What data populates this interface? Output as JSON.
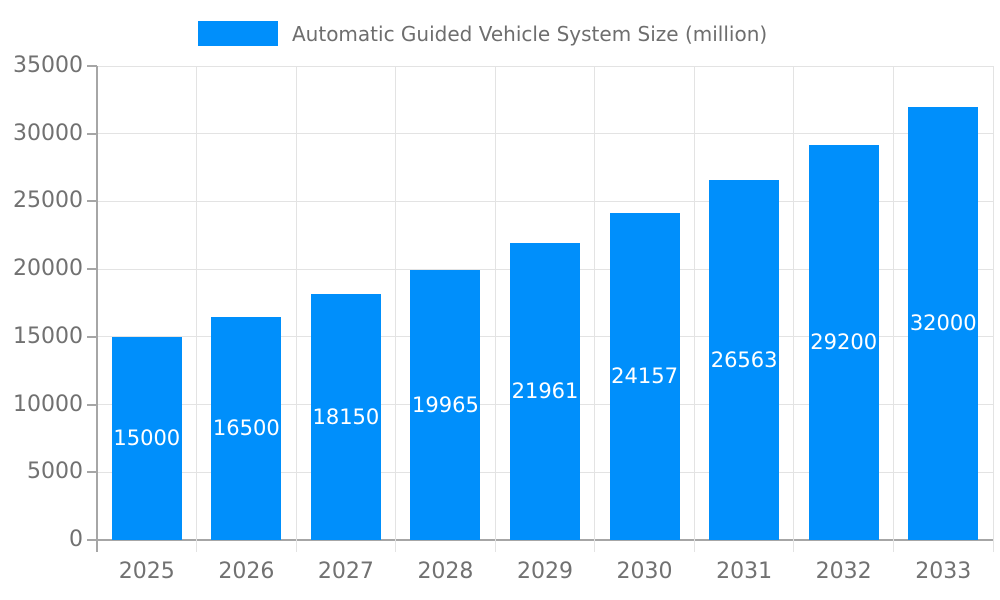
{
  "chart_data": {
    "type": "bar",
    "title": "",
    "categories": [
      "2025",
      "2026",
      "2027",
      "2028",
      "2029",
      "2030",
      "2031",
      "2032",
      "2033"
    ],
    "series": [
      {
        "name": "Automatic Guided Vehicle System Size (million)",
        "values": [
          15000,
          16500,
          18150,
          19965,
          21961,
          24157,
          26563,
          29200,
          32000
        ]
      }
    ],
    "value_labels": [
      "15000",
      "16500",
      "18150",
      "19965",
      "21961",
      "24157",
      "26563",
      "29200",
      "32000"
    ],
    "xlabel": "",
    "ylabel": "",
    "ylim": [
      0,
      35000
    ],
    "ytick_step": 5000,
    "ytick_labels": [
      "0",
      "5000",
      "10000",
      "15000",
      "20000",
      "25000",
      "30000",
      "35000"
    ],
    "grid": true,
    "legend_position": "top",
    "colors": {
      "bar": "#008FFB",
      "value_label": "#ffffff",
      "axis_text": "#717171",
      "legend_text": "#6e6e6e",
      "gridline": "#e3e3e3",
      "axis_line": "#a6a6a6",
      "background": "#ffffff"
    }
  }
}
